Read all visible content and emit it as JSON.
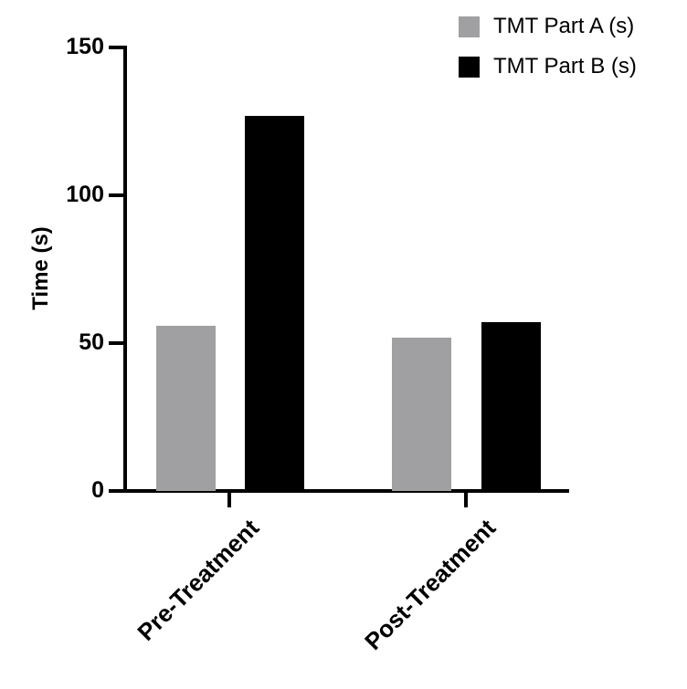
{
  "chart_data": {
    "type": "bar",
    "title": "",
    "xlabel": "",
    "ylabel": "Time (s)",
    "ylim": [
      0,
      150
    ],
    "yticks": [
      0,
      50,
      100,
      150
    ],
    "categories": [
      "Pre-Treatment",
      "Post-Treatment"
    ],
    "series": [
      {
        "name": "TMT Part A (s)",
        "color": "#a0a0a2",
        "values": [
          56,
          52
        ]
      },
      {
        "name": "TMT Part B (s)",
        "color": "#000000",
        "values": [
          127,
          57
        ]
      }
    ],
    "legend_position": "top-right",
    "grid": false
  },
  "axis": {
    "ytitle": "Time (s)",
    "yticks": [
      "0",
      "50",
      "100",
      "150"
    ]
  },
  "categories": [
    "Pre-Treatment",
    "Post-Treatment"
  ],
  "legend": [
    {
      "label": "TMT Part A (s)",
      "color": "#a0a0a2"
    },
    {
      "label": "TMT Part B (s)",
      "color": "#000000"
    }
  ]
}
